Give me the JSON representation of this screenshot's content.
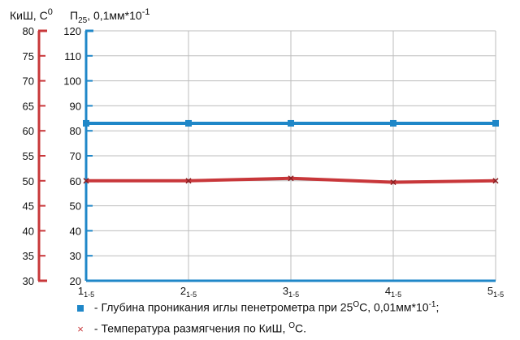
{
  "chart_data": {
    "type": "line",
    "left_axis": {
      "label": "КиШ, С",
      "label_sup": "0",
      "ylim": [
        30,
        80
      ],
      "ticks": [
        30,
        35,
        40,
        45,
        50,
        55,
        60,
        65,
        70,
        75,
        80
      ],
      "color": "#c8373a"
    },
    "right_axis": {
      "label": "П",
      "label_sub": "25",
      "label_rest": ", 0,1мм*10",
      "label_sup": "-1",
      "ylim": [
        20,
        120
      ],
      "ticks": [
        20,
        30,
        40,
        50,
        60,
        70,
        80,
        90,
        100,
        110,
        120
      ],
      "color": "#1f87c8"
    },
    "x": {
      "categories": [
        "1",
        "2",
        "3",
        "4",
        "5"
      ],
      "sub": "1-5"
    },
    "series": [
      {
        "name": "Глубина проникания иглы пенетрометра при 25",
        "axis": "right",
        "values": [
          83,
          83,
          83,
          83,
          83
        ],
        "color": "#1f87c8",
        "marker": "square"
      },
      {
        "name": "Температура размягчения по КиШ, ",
        "axis": "left",
        "values": [
          50,
          50,
          50.5,
          49.7,
          50
        ],
        "color": "#c8373a",
        "marker": "x"
      }
    ],
    "grid": true
  },
  "legend": {
    "item1": {
      "prefix": "- ",
      "text": "Глубина проникания иглы пенетрометра при 25",
      "sup1": "O",
      "mid": "С,  0,01мм*10",
      "sup2": "-1",
      "end": ";"
    },
    "item2": {
      "prefix": "- ",
      "text": "Температура размягчения по КиШ, ",
      "sup1": "O",
      "end": "С."
    }
  }
}
